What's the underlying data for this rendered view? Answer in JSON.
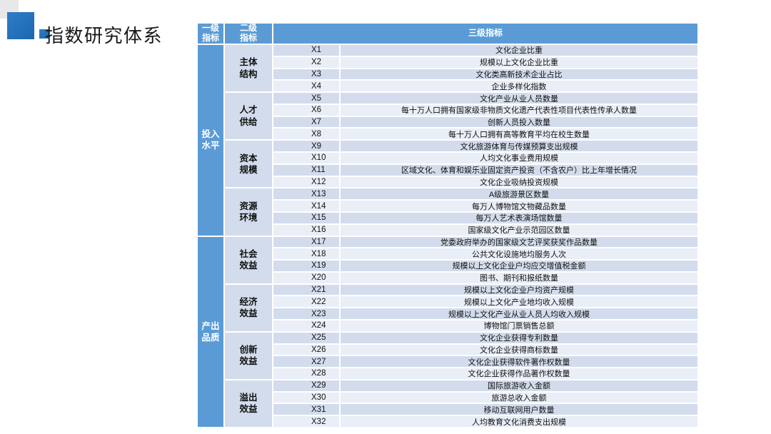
{
  "title": "指数研究体系",
  "colors": {
    "header_blue": "#5b9bd5",
    "band_dark": "#d3dcec",
    "band_light": "#e9eef7",
    "accent_blue": "#1e6fc0",
    "deco_gray": "#e8e8e8"
  },
  "table": {
    "header": {
      "col1": "一级指标",
      "col2": "二级指标",
      "col3": "三级指标"
    },
    "groups": [
      {
        "level1": "投入水平",
        "level2": [
          {
            "name": "主体结构",
            "items": [
              [
                "X1",
                "文化企业比重"
              ],
              [
                "X2",
                "规模以上文化企业比重"
              ],
              [
                "X3",
                "文化类高新技术企业占比"
              ],
              [
                "X4",
                "企业多样化指数"
              ]
            ]
          },
          {
            "name": "人才供给",
            "items": [
              [
                "X5",
                "文化产业从业人员数量"
              ],
              [
                "X6",
                "每十万人口拥有国家级非物质文化遗产代表性项目代表性传承人数量"
              ],
              [
                "X7",
                "创新人员投入数量"
              ],
              [
                "X8",
                "每十万人口拥有高等教育平均在校生数量"
              ]
            ]
          },
          {
            "name": "资本规模",
            "items": [
              [
                "X9",
                "文化旅游体育与传媒预算支出规模"
              ],
              [
                "X10",
                "人均文化事业费用规模"
              ],
              [
                "X11",
                "区域文化、体育和娱乐业固定资产投资（不含农户）比上年增长情况"
              ],
              [
                "X12",
                "文化企业吸纳投资规模"
              ]
            ]
          },
          {
            "name": "资源环境",
            "items": [
              [
                "X13",
                "A级旅游景区数量"
              ],
              [
                "X14",
                "每万人博物馆文物藏品数量"
              ],
              [
                "X15",
                "每万人艺术表演场馆数量"
              ],
              [
                "X16",
                "国家级文化产业示范园区数量"
              ]
            ]
          }
        ]
      },
      {
        "level1": "产出品质",
        "level2": [
          {
            "name": "社会效益",
            "items": [
              [
                "X17",
                "党委政府举办的国家级文艺评奖获奖作品数量"
              ],
              [
                "X18",
                "公共文化设施地均服务人次"
              ],
              [
                "X19",
                "规模以上文化企业户均应交增值税金额"
              ],
              [
                "X20",
                "图书、期刊和报纸数量"
              ]
            ]
          },
          {
            "name": "经济效益",
            "items": [
              [
                "X21",
                "规模以上文化企业户均资产规模"
              ],
              [
                "X22",
                "规模以上文化产业地均收入规模"
              ],
              [
                "X23",
                "规模以上文化产业从业人员人均收入规模"
              ],
              [
                "X24",
                "博物馆门票销售总额"
              ]
            ]
          },
          {
            "name": "创新效益",
            "items": [
              [
                "X25",
                "文化企业获得专利数量"
              ],
              [
                "X26",
                "文化企业获得商标数量"
              ],
              [
                "X27",
                "文化企业获得软件著作权数量"
              ],
              [
                "X28",
                "文化企业获得作品著作权数量"
              ]
            ]
          },
          {
            "name": "溢出效益",
            "items": [
              [
                "X29",
                "国际旅游收入金额"
              ],
              [
                "X30",
                "旅游总收入金额"
              ],
              [
                "X31",
                "移动互联网用户数量"
              ],
              [
                "X32",
                "人均教育文化消费支出规模"
              ]
            ]
          }
        ]
      }
    ]
  }
}
